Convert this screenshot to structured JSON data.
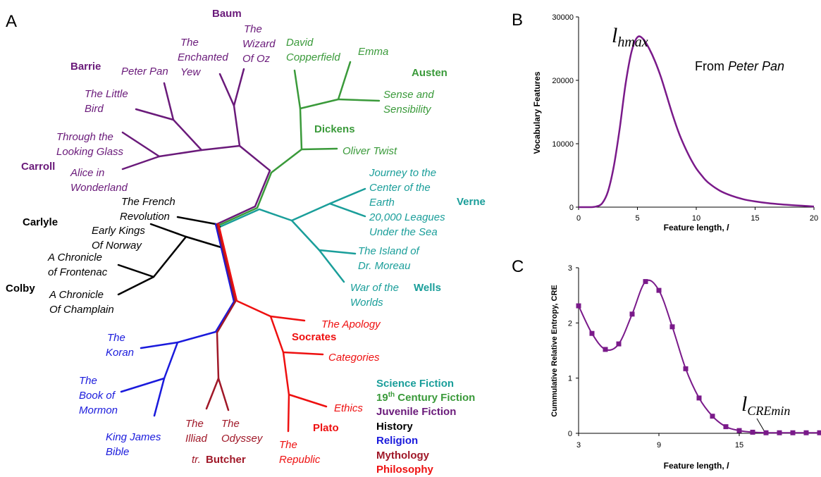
{
  "panels": {
    "a": "A",
    "b": "B",
    "c": "C"
  },
  "colors": {
    "science_fiction": "#1a9e9a",
    "century_fiction": "#3a9a3a",
    "juvenile_fiction": "#6a1a7a",
    "history": "#000000",
    "religion": "#1a1adc",
    "mythology": "#a01828",
    "philosophy": "#ee1010",
    "curve": "#7a1a8a"
  },
  "tree": {
    "authors": {
      "baum": "Baum",
      "barrie": "Barrie",
      "carroll": "Carroll",
      "austen": "Austen",
      "dickens": "Dickens",
      "verne": "Verne",
      "wells": "Wells",
      "carlyle": "Carlyle",
      "colby": "Colby",
      "socrates": "Socrates",
      "plato": "Plato",
      "tr": "tr.",
      "butcher": "Butcher"
    },
    "titles": {
      "enchanted": [
        "The",
        "Enchanted",
        "Yew"
      ],
      "wizard": [
        "The",
        "Wizard",
        "Of Oz"
      ],
      "peter_pan": [
        "Peter Pan"
      ],
      "little_bird": [
        "The Little",
        "Bird"
      ],
      "looking_glass": [
        "Through the",
        "Looking Glass"
      ],
      "alice": [
        "Alice in",
        "Wonderland"
      ],
      "copperfield": [
        "David",
        "Copperfield"
      ],
      "emma": [
        "Emma"
      ],
      "sense": [
        "Sense and",
        "Sensibility"
      ],
      "oliver": [
        "Oliver Twist"
      ],
      "journey": [
        "Journey to the",
        "Center of the",
        "Earth"
      ],
      "leagues": [
        "20,000 Leagues",
        "Under the Sea"
      ],
      "moreau": [
        "The Island of",
        "Dr. Moreau"
      ],
      "war": [
        "War of the",
        "Worlds"
      ],
      "french": [
        "The French",
        "Revolution"
      ],
      "kings": [
        "Early Kings",
        "Of Norway"
      ],
      "frontenac": [
        "A Chronicle",
        "of Frontenac"
      ],
      "champlain": [
        "A Chronicle",
        "Of Champlain"
      ],
      "koran": [
        "The",
        "Koran"
      ],
      "mormon": [
        "The",
        "Book of",
        "Mormon"
      ],
      "kjv": [
        "King James",
        "Bible"
      ],
      "illiad": [
        "The",
        "Illiad"
      ],
      "odyssey": [
        "The",
        "Odyssey"
      ],
      "apology": [
        "The Apology"
      ],
      "categories": [
        "Categories"
      ],
      "ethics": [
        "Ethics"
      ],
      "republic": [
        "The",
        "Republic"
      ]
    },
    "legend": {
      "science_fiction": "Science Fiction",
      "century_prefix": "19",
      "century_sup": "th",
      "century_suffix": " Century Fiction",
      "juvenile_fiction": "Juvenile Fiction",
      "history": "History",
      "religion": "Religion",
      "mythology": "Mythology",
      "philosophy": "Philosophy"
    }
  },
  "chart_data": [
    {
      "type": "line",
      "panel": "B",
      "xlabel_prefix": "Feature length, ",
      "xlabel_var": "l",
      "ylabel": "Vocabulary Features",
      "xlim": [
        0,
        20
      ],
      "ylim": [
        0,
        30000
      ],
      "xticks": [
        0,
        5,
        10,
        15,
        20
      ],
      "yticks": [
        0,
        10000,
        20000,
        30000
      ],
      "annotation_main": "l",
      "annotation_sub": "hmax",
      "note_prefix": "From ",
      "note_title": "Peter Pan",
      "x": [
        0,
        1,
        1.5,
        2,
        2.5,
        3,
        3.5,
        4,
        4.5,
        5,
        5.5,
        6,
        6.5,
        7,
        7.5,
        8,
        8.5,
        9,
        9.5,
        10,
        10.5,
        11,
        12,
        13,
        14,
        15,
        16,
        17,
        18,
        19,
        20
      ],
      "y": [
        0,
        0,
        100,
        600,
        2500,
        6500,
        12500,
        19500,
        24500,
        26800,
        26500,
        25000,
        23000,
        20500,
        17500,
        14500,
        11800,
        9600,
        7700,
        6100,
        4900,
        3900,
        2600,
        1800,
        1250,
        900,
        650,
        480,
        330,
        220,
        100
      ]
    },
    {
      "type": "line",
      "panel": "C",
      "xlabel_prefix": "Feature length, ",
      "xlabel_var": "l",
      "ylabel": "Cummulative Relative Entropy, CRE",
      "xlim": [
        3,
        21
      ],
      "ylim": [
        0,
        3
      ],
      "xticks": [
        3,
        9,
        15
      ],
      "yticks": [
        0,
        1,
        2,
        3
      ],
      "annotation_main": "l",
      "annotation_sub": "CREmin",
      "x": [
        3,
        4,
        5,
        6,
        7,
        8,
        9,
        10,
        11,
        12,
        13,
        14,
        15,
        16,
        17,
        18,
        19,
        20,
        21
      ],
      "y": [
        2.31,
        1.81,
        1.52,
        1.62,
        2.16,
        2.75,
        2.59,
        1.93,
        1.17,
        0.64,
        0.31,
        0.12,
        0.05,
        0.02,
        0.01,
        0.01,
        0.01,
        0.01,
        0.01
      ]
    }
  ]
}
